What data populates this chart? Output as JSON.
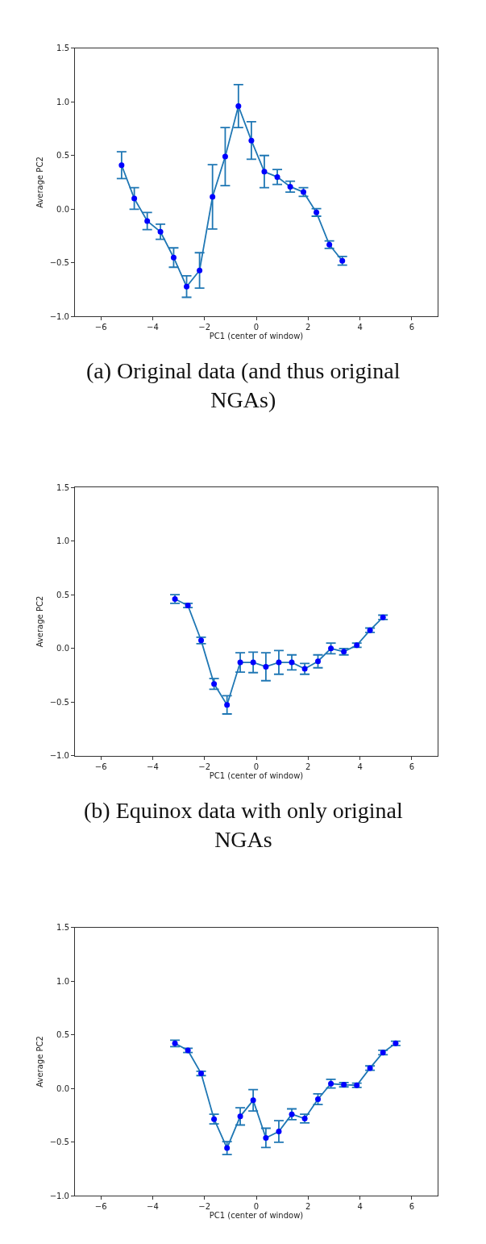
{
  "chart_data": [
    {
      "type": "line",
      "xlabel": "PC1 (center of window)",
      "ylabel": "Average PC2",
      "annotations": [
        "(a) Original data (and thus original NGAs)"
      ],
      "xlim": [
        -7,
        7
      ],
      "ylim": [
        -1,
        1.5
      ],
      "xticks": [
        {
          "value": -6,
          "label": "−6"
        },
        {
          "value": -4,
          "label": "−4"
        },
        {
          "value": -2,
          "label": "−2"
        },
        0,
        2,
        4,
        6
      ],
      "yticks": [
        {
          "value": -1,
          "label": "−1.0"
        },
        {
          "value": -0.5,
          "label": "−0.5"
        },
        {
          "value": 0,
          "label": "0.0"
        },
        {
          "value": 0.5,
          "label": "0.5"
        },
        {
          "value": 1,
          "label": "1.0"
        },
        {
          "value": 1.5,
          "label": "1.5"
        }
      ],
      "marker": "circle",
      "line_style": "solid",
      "x": [
        -5.2,
        -4.71,
        -4.21,
        -3.7,
        -3.19,
        -2.69,
        -2.19,
        -1.69,
        -1.2,
        -0.69,
        -0.19,
        0.31,
        0.81,
        1.31,
        1.82,
        2.32,
        2.82,
        3.32
      ],
      "series": [
        {
          "color": "#0000ff",
          "values": [
            0.41,
            0.1,
            -0.11,
            -0.21,
            -0.45,
            -0.72,
            -0.57,
            0.115,
            0.49,
            0.96,
            0.64,
            0.35,
            0.3,
            0.21,
            0.16,
            -0.03,
            -0.33,
            -0.48
          ],
          "errors": [
            0.125,
            0.1,
            0.08,
            0.07,
            0.09,
            0.1,
            0.165,
            0.3,
            0.27,
            0.2,
            0.175,
            0.15,
            0.07,
            0.05,
            0.04,
            0.035,
            0.035,
            0.04
          ]
        }
      ]
    },
    {
      "type": "line",
      "xlabel": "PC1 (center of window)",
      "ylabel": "Average PC2",
      "annotations": [
        "(b) Equinox data with only original NGAs"
      ],
      "xlim": [
        -7,
        7
      ],
      "ylim": [
        -1,
        1.5
      ],
      "xticks": [
        {
          "value": -6,
          "label": "−6"
        },
        {
          "value": -4,
          "label": "−4"
        },
        {
          "value": -2,
          "label": "−2"
        },
        0,
        2,
        4,
        6
      ],
      "yticks": [
        {
          "value": -1,
          "label": "−1.0"
        },
        {
          "value": -0.5,
          "label": "−0.5"
        },
        {
          "value": 0,
          "label": "0.0"
        },
        {
          "value": 0.5,
          "label": "0.5"
        },
        {
          "value": 1,
          "label": "1.0"
        },
        {
          "value": 1.5,
          "label": "1.5"
        }
      ],
      "marker": "circle",
      "line_style": "solid",
      "x": [
        -3.14,
        -2.64,
        -2.13,
        -1.63,
        -1.13,
        -0.62,
        -0.12,
        0.37,
        0.87,
        1.37,
        1.87,
        2.38,
        2.88,
        3.38,
        3.88,
        4.39,
        4.89
      ],
      "series": [
        {
          "color": "#0000ff",
          "values": [
            0.46,
            0.4,
            0.075,
            -0.33,
            -0.525,
            -0.13,
            -0.13,
            -0.17,
            -0.13,
            -0.13,
            -0.19,
            -0.12,
            0.0,
            -0.03,
            0.03,
            0.17,
            0.29
          ],
          "errors": [
            0.04,
            0.02,
            0.03,
            0.05,
            0.085,
            0.09,
            0.095,
            0.13,
            0.11,
            0.07,
            0.05,
            0.06,
            0.05,
            0.03,
            0.02,
            0.02,
            0.02
          ]
        }
      ]
    },
    {
      "type": "line",
      "xlabel": "PC1 (center of window)",
      "ylabel": "Average PC2",
      "xlim": [
        -7,
        7
      ],
      "ylim": [
        -1,
        1.5
      ],
      "xticks": [
        {
          "value": -6,
          "label": "−6"
        },
        {
          "value": -4,
          "label": "−4"
        },
        {
          "value": -2,
          "label": "−2"
        },
        0,
        2,
        4,
        6
      ],
      "yticks": [
        {
          "value": -1,
          "label": "−1.0"
        },
        {
          "value": -0.5,
          "label": "−0.5"
        },
        {
          "value": 0,
          "label": "0.0"
        },
        {
          "value": 0.5,
          "label": "0.5"
        },
        {
          "value": 1,
          "label": "1.0"
        },
        {
          "value": 1.5,
          "label": "1.5"
        }
      ],
      "marker": "circle",
      "line_style": "solid",
      "x": [
        -3.14,
        -2.64,
        -2.13,
        -1.63,
        -1.13,
        -0.62,
        -0.12,
        0.37,
        0.87,
        1.37,
        1.87,
        2.38,
        2.88,
        3.38,
        3.88,
        4.39,
        4.89,
        5.38
      ],
      "series": [
        {
          "color": "#0000ff",
          "values": [
            0.42,
            0.355,
            0.14,
            -0.285,
            -0.555,
            -0.26,
            -0.11,
            -0.46,
            -0.4,
            -0.24,
            -0.28,
            -0.1,
            0.045,
            0.035,
            0.03,
            0.19,
            0.335,
            0.42
          ],
          "errors": [
            0.03,
            0.02,
            0.02,
            0.045,
            0.06,
            0.08,
            0.1,
            0.09,
            0.1,
            0.05,
            0.04,
            0.05,
            0.04,
            0.02,
            0.02,
            0.02,
            0.02,
            0.02
          ]
        }
      ]
    }
  ]
}
